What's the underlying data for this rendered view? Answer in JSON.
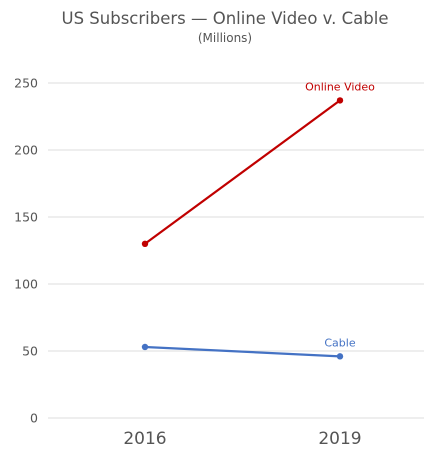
{
  "chart_data": {
    "type": "line",
    "title": "US Subscribers — Online Video v. Cable",
    "subtitle": "(Millions)",
    "xlabel": "",
    "ylabel": "",
    "categories": [
      "2016",
      "2019"
    ],
    "ylim": [
      0,
      250
    ],
    "yticks": [
      0,
      50,
      100,
      150,
      200,
      250
    ],
    "grid": true,
    "legend": "none",
    "series": [
      {
        "name": "Online Video",
        "values": [
          130,
          237
        ],
        "color": "#c00000"
      },
      {
        "name": "Cable",
        "values": [
          53,
          46
        ],
        "color": "#4472c4"
      }
    ]
  }
}
